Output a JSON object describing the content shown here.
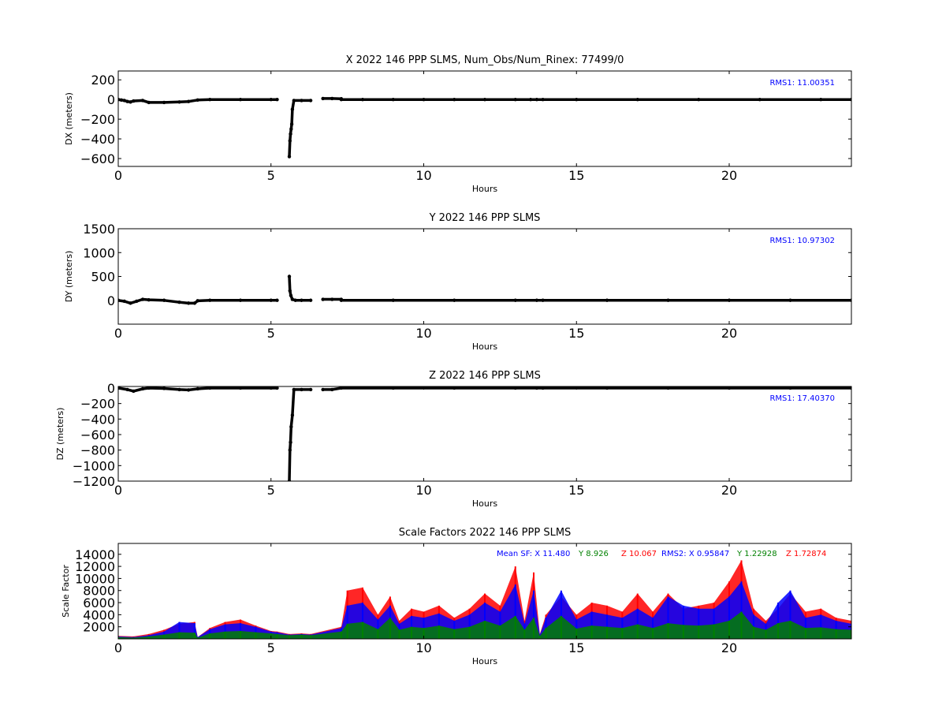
{
  "chart_data": [
    {
      "type": "scatter",
      "title": "X 2022 146 PPP  SLMS, Num_Obs/Num_Rinex: 77499/0",
      "xlabel": "Hours",
      "ylabel": "DX (meters)",
      "xlim": [
        0,
        24
      ],
      "ylim": [
        -680,
        290
      ],
      "xticks": [
        0,
        5,
        10,
        15,
        20
      ],
      "yticks": [
        200,
        0,
        -200,
        -400,
        -600
      ],
      "ytick_labels": [
        "200",
        "0",
        "−200",
        "−400",
        "−600"
      ],
      "annotation": "RMS1: 11.00351",
      "annotation_color": "#0000ff",
      "series": [
        {
          "x": [
            0.0,
            0.1,
            0.2,
            0.3,
            0.4,
            0.5,
            0.8,
            1.0,
            1.5,
            2.0,
            2.3,
            2.6,
            3.0,
            4.0,
            5.0,
            5.2
          ],
          "y": [
            0,
            -5,
            -10,
            -20,
            -25,
            -15,
            -10,
            -30,
            -30,
            -25,
            -20,
            -5,
            0,
            0,
            0,
            0
          ]
        },
        {
          "x": [
            5.6,
            5.62,
            5.64,
            5.66,
            5.68,
            5.7,
            5.75,
            6.0,
            6.3
          ],
          "y": [
            -580,
            -420,
            -350,
            -300,
            -250,
            -100,
            -10,
            -10,
            -10
          ]
        },
        {
          "x": [
            6.7,
            7.0,
            7.3
          ],
          "y": [
            10,
            10,
            8
          ]
        },
        {
          "x": [
            7.3,
            8.0,
            9.0,
            10.0,
            11.0,
            12.0,
            13.0,
            13.5,
            13.7,
            13.9,
            15.0,
            17.0,
            19.0,
            21.0,
            23.0,
            24.0
          ],
          "y": [
            0,
            0,
            0,
            0,
            0,
            0,
            0,
            0,
            0,
            0,
            0,
            0,
            0,
            0,
            0,
            0
          ]
        }
      ]
    },
    {
      "type": "scatter",
      "title": "Y 2022 146 PPP  SLMS",
      "xlabel": "Hours",
      "ylabel": "DY (meters)",
      "xlim": [
        0,
        24
      ],
      "ylim": [
        -500,
        1500
      ],
      "xticks": [
        0,
        5,
        10,
        15,
        20
      ],
      "yticks": [
        1500,
        1000,
        500,
        0
      ],
      "ytick_labels": [
        "1500",
        "1000",
        "500",
        "0"
      ],
      "annotation": "RMS1: 10.97302",
      "annotation_color": "#0000ff",
      "series": [
        {
          "x": [
            0.0,
            0.2,
            0.4,
            0.6,
            0.8,
            1.0,
            1.5,
            2.0,
            2.3,
            2.5,
            2.6,
            3.0,
            4.0,
            5.0,
            5.2
          ],
          "y": [
            0,
            -20,
            -60,
            -20,
            20,
            10,
            0,
            -40,
            -60,
            -60,
            -10,
            0,
            0,
            0,
            0
          ]
        },
        {
          "x": [
            5.6,
            5.62,
            5.65,
            5.7,
            5.8,
            6.0,
            6.3
          ],
          "y": [
            500,
            200,
            100,
            20,
            0,
            0,
            0
          ]
        },
        {
          "x": [
            6.7,
            7.0,
            7.3
          ],
          "y": [
            20,
            20,
            20
          ]
        },
        {
          "x": [
            7.3,
            9.0,
            11.0,
            13.0,
            13.7,
            13.9,
            16.0,
            18.0,
            20.0,
            22.0,
            24.0
          ],
          "y": [
            0,
            0,
            0,
            0,
            0,
            0,
            0,
            0,
            0,
            0,
            0
          ]
        }
      ]
    },
    {
      "type": "scatter",
      "title": "Z 2022 146 PPP  SLMS",
      "xlabel": "Hours",
      "ylabel": "DZ (meters)",
      "xlim": [
        0,
        24
      ],
      "ylim": [
        -1200,
        20
      ],
      "xticks": [
        0,
        5,
        10,
        15,
        20
      ],
      "yticks": [
        0,
        -200,
        -400,
        -600,
        -800,
        -1000,
        -1200
      ],
      "ytick_labels": [
        "0",
        "−200",
        "−400",
        "−600",
        "−800",
        "−1000",
        "−1200"
      ],
      "annotation": "RMS1: 17.40370",
      "annotation_color": "#0000ff",
      "series": [
        {
          "x": [
            0.0,
            0.3,
            0.5,
            0.8,
            1.0,
            1.5,
            2.0,
            2.3,
            2.6,
            3.0,
            4.0,
            5.0,
            5.2
          ],
          "y": [
            0,
            -20,
            -40,
            -10,
            0,
            -5,
            -20,
            -25,
            -10,
            0,
            0,
            0,
            0
          ]
        },
        {
          "x": [
            5.6,
            5.62,
            5.64,
            5.66,
            5.7,
            5.75,
            6.0,
            6.3
          ],
          "y": [
            -1200,
            -800,
            -700,
            -500,
            -350,
            -20,
            -20,
            -20
          ]
        },
        {
          "x": [
            6.7,
            7.0,
            7.3,
            9.0,
            11.0,
            13.0,
            13.7,
            13.9,
            16.0,
            18.0,
            20.0,
            22.0,
            24.0
          ],
          "y": [
            -20,
            -20,
            0,
            0,
            0,
            0,
            0,
            0,
            0,
            0,
            0,
            0,
            0
          ]
        }
      ]
    },
    {
      "type": "scatter",
      "title": "Scale Factors 2022 146 PPP  SLMS",
      "xlabel": "Hours",
      "ylabel": "Scale Factor",
      "xlim": [
        0,
        24
      ],
      "ylim": [
        0,
        15800
      ],
      "xticks": [
        0,
        5,
        10,
        15,
        20
      ],
      "yticks": [
        14000,
        12000,
        10000,
        8000,
        6000,
        4000,
        2000
      ],
      "ytick_labels": [
        "14000",
        "12000",
        "10000",
        "8000",
        "6000",
        "4000",
        "2000"
      ],
      "annotation_parts": [
        {
          "text": "Mean SF: X  11.480",
          "color": "#0000ff"
        },
        {
          "text": "Y   8.926",
          "color": "#008000"
        },
        {
          "text": "Z  10.067",
          "color": "#ff0000"
        },
        {
          "text": "RMS2: X  0.95847",
          "color": "#0000ff"
        },
        {
          "text": "Y  1.22928",
          "color": "#008000"
        },
        {
          "text": "Z  1.72874",
          "color": "#ff0000"
        }
      ],
      "series": [
        {
          "name": "Z",
          "color": "#ff0000",
          "x": [
            0,
            0.5,
            1,
            1.5,
            2,
            2.5,
            2.6,
            3,
            3.5,
            4,
            4.5,
            5,
            5.2,
            5.6,
            6,
            6.3,
            7.3,
            7.5,
            8,
            8.5,
            8.9,
            9.2,
            9.6,
            10,
            10.5,
            11,
            11.5,
            12,
            12.5,
            13,
            13.3,
            13.6,
            13.8,
            14,
            14.5,
            15,
            15.5,
            16,
            16.5,
            17,
            17.5,
            18,
            18.5,
            19,
            19.5,
            20,
            20.4,
            20.8,
            21.2,
            21.6,
            22,
            22.5,
            23,
            23.5,
            24
          ],
          "y": [
            500,
            400,
            800,
            1500,
            2500,
            2800,
            300,
            1800,
            2800,
            3200,
            2200,
            1300,
            1200,
            800,
            900,
            800,
            2000,
            8000,
            8500,
            4000,
            7000,
            3000,
            5000,
            4500,
            5500,
            3500,
            5000,
            7500,
            5500,
            12000,
            3000,
            11000,
            800,
            4000,
            7000,
            4000,
            6000,
            5500,
            4500,
            7500,
            4500,
            7500,
            5000,
            5500,
            6000,
            9500,
            13000,
            5000,
            3000,
            5000,
            7500,
            4500,
            5000,
            3500,
            3000
          ]
        },
        {
          "name": "X",
          "color": "#0000ff",
          "x": [
            0,
            0.5,
            1,
            1.5,
            2,
            2.5,
            2.6,
            3,
            3.5,
            4,
            4.5,
            5,
            5.2,
            5.6,
            6,
            6.3,
            7.3,
            7.5,
            8,
            8.5,
            8.9,
            9.2,
            9.6,
            10,
            10.5,
            11,
            11.5,
            12,
            12.5,
            13,
            13.3,
            13.6,
            13.8,
            14,
            14.5,
            15,
            15.5,
            16,
            16.5,
            17,
            17.5,
            18,
            18.5,
            19,
            19.5,
            20,
            20.4,
            20.8,
            21.2,
            21.6,
            22,
            22.5,
            23,
            23.5,
            24
          ],
          "y": [
            400,
            300,
            600,
            1200,
            2800,
            2600,
            300,
            1600,
            2400,
            2600,
            2000,
            1200,
            1100,
            700,
            800,
            700,
            1800,
            5500,
            6000,
            3200,
            5500,
            2500,
            3800,
            3500,
            4200,
            3000,
            4000,
            6000,
            4500,
            9000,
            2500,
            8000,
            700,
            3500,
            8000,
            3200,
            4500,
            4000,
            3500,
            5000,
            3500,
            7000,
            5500,
            5000,
            5000,
            7000,
            9500,
            4000,
            2500,
            6000,
            8000,
            3500,
            4000,
            3000,
            2500
          ]
        },
        {
          "name": "Y",
          "color": "#008000",
          "x": [
            0,
            0.5,
            1,
            1.5,
            2,
            2.5,
            2.6,
            3,
            3.5,
            4,
            4.5,
            5,
            5.2,
            5.6,
            6,
            6.3,
            7.3,
            7.5,
            8,
            8.5,
            8.9,
            9.2,
            9.6,
            10,
            10.5,
            11,
            11.5,
            12,
            12.5,
            13,
            13.3,
            13.6,
            13.8,
            14,
            14.5,
            15,
            15.5,
            16,
            16.5,
            17,
            17.5,
            18,
            18.5,
            19,
            19.5,
            20,
            20.4,
            20.8,
            21.2,
            21.6,
            22,
            22.5,
            23,
            23.5,
            24
          ],
          "y": [
            300,
            200,
            400,
            700,
            1100,
            1000,
            200,
            900,
            1200,
            1300,
            1100,
            900,
            800,
            600,
            700,
            600,
            1200,
            2500,
            2800,
            1600,
            3500,
            1500,
            2000,
            1800,
            2200,
            1600,
            2000,
            3000,
            2200,
            3800,
            1500,
            3500,
            500,
            1800,
            3800,
            1700,
            2200,
            2000,
            1800,
            2400,
            1800,
            2600,
            2300,
            2200,
            2400,
            3000,
            4500,
            2000,
            1500,
            2600,
            3000,
            1800,
            1900,
            1600,
            1500
          ]
        }
      ]
    }
  ]
}
